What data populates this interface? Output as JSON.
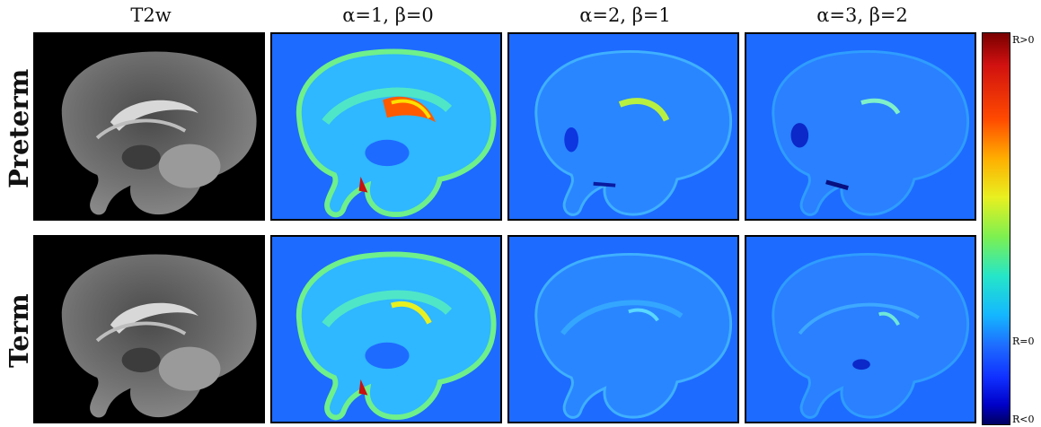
{
  "columns": [
    "T2w",
    "α=1, β=0",
    "α=2, β=1",
    "α=3, β=2"
  ],
  "rows": [
    "Preterm",
    "Term"
  ],
  "colorbar": {
    "top_label": "R>0",
    "middle_label": "R=0",
    "bottom_label": "R<0",
    "colormap": "jet"
  },
  "colors": {
    "map_background": "#1e6bff",
    "t2_background": "#000000"
  }
}
